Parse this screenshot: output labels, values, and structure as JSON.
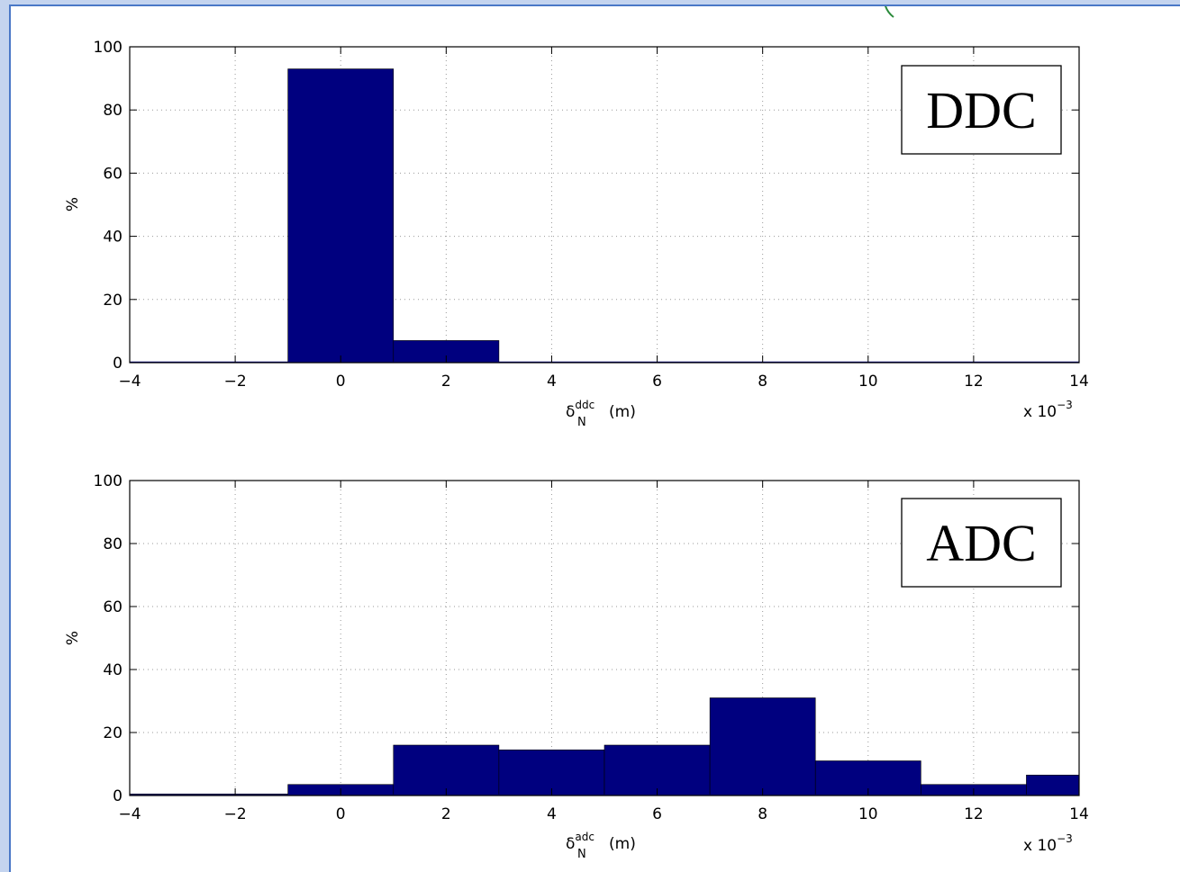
{
  "chart_data": [
    {
      "type": "bar",
      "legend_box": "DDC",
      "ylabel": "%",
      "xlabel_symbol": "δ",
      "xlabel_sup": "ddc",
      "xlabel_sub": "N",
      "xlabel_unit": "(m)",
      "x_multiplier": "x 10",
      "x_multiplier_exp": "−3",
      "xlim": [
        -4,
        14
      ],
      "ylim": [
        0,
        100
      ],
      "xticks": [
        -4,
        -2,
        0,
        2,
        4,
        6,
        8,
        10,
        12,
        14
      ],
      "xtick_labels": [
        "−4",
        "−2",
        "0",
        "2",
        "4",
        "6",
        "8",
        "10",
        "12",
        "14"
      ],
      "yticks": [
        0,
        20,
        40,
        60,
        80,
        100
      ],
      "ytick_labels": [
        "0",
        "20",
        "40",
        "60",
        "80",
        "100"
      ],
      "grid": true,
      "bar_color": "#00007f",
      "bins": [
        {
          "x0": -1,
          "x1": 1,
          "value": 93
        },
        {
          "x0": 1,
          "x1": 3,
          "value": 7
        }
      ]
    },
    {
      "type": "bar",
      "legend_box": "ADC",
      "ylabel": "%",
      "xlabel_symbol": "δ",
      "xlabel_sup": "adc",
      "xlabel_sub": "N",
      "xlabel_unit": "(m)",
      "x_multiplier": "x 10",
      "x_multiplier_exp": "−3",
      "xlim": [
        -4,
        14
      ],
      "ylim": [
        0,
        100
      ],
      "xticks": [
        -4,
        -2,
        0,
        2,
        4,
        6,
        8,
        10,
        12,
        14
      ],
      "xtick_labels": [
        "−4",
        "−2",
        "0",
        "2",
        "4",
        "6",
        "8",
        "10",
        "12",
        "14"
      ],
      "yticks": [
        0,
        20,
        40,
        60,
        80,
        100
      ],
      "ytick_labels": [
        "0",
        "20",
        "40",
        "60",
        "80",
        "100"
      ],
      "grid": true,
      "bar_color": "#00007f",
      "bins": [
        {
          "x0": -4,
          "x1": -1,
          "value": 0.5
        },
        {
          "x0": -1,
          "x1": 1,
          "value": 3.5
        },
        {
          "x0": 1,
          "x1": 3,
          "value": 16
        },
        {
          "x0": 3,
          "x1": 5,
          "value": 14.5
        },
        {
          "x0": 5,
          "x1": 7,
          "value": 16
        },
        {
          "x0": 7,
          "x1": 9,
          "value": 31
        },
        {
          "x0": 9,
          "x1": 11,
          "value": 11
        },
        {
          "x0": 11,
          "x1": 13,
          "value": 3.5
        },
        {
          "x0": 13,
          "x1": 14,
          "value": 6.5
        }
      ]
    }
  ]
}
